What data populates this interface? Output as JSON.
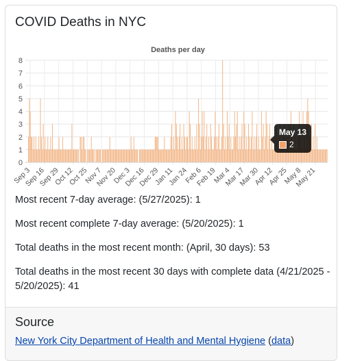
{
  "title": "COVID Deaths in NYC",
  "chart_data": {
    "type": "bar",
    "title": "Deaths per day",
    "ylim": [
      0,
      8
    ],
    "y_ticks": [
      "0",
      "1",
      "2",
      "3",
      "4",
      "5",
      "6",
      "7",
      "8"
    ],
    "x_tick_labels": [
      "Sep 3",
      "Sep 16",
      "Sep 29",
      "Oct 12",
      "Oct 25",
      "Nov 7",
      "Nov 20",
      "Dec 3",
      "Dec 16",
      "Dec 29",
      "Jan 11",
      "Jan 24",
      "Feb 6",
      "Feb 19",
      "Mar 4",
      "Mar 17",
      "Mar 30",
      "Apr 12",
      "Apr 25",
      "May 8",
      "May 21"
    ],
    "color": "#f0a46a",
    "values": [
      2,
      5,
      4,
      2,
      2,
      1,
      2,
      1,
      2,
      1,
      1,
      2,
      1,
      5,
      2,
      1,
      3,
      1,
      2,
      1,
      1,
      2,
      1,
      1,
      2,
      1,
      3,
      1,
      1,
      1,
      1,
      1,
      1,
      2,
      1,
      1,
      1,
      2,
      1,
      1,
      1,
      1,
      1,
      1,
      1,
      1,
      1,
      3,
      1,
      1,
      1,
      1,
      1,
      1,
      1,
      0,
      2,
      2,
      1,
      2,
      2,
      1,
      1,
      0,
      1,
      1,
      1,
      1,
      2,
      1,
      1,
      1,
      0,
      1,
      1,
      1,
      1,
      1,
      1,
      0,
      1,
      1,
      1,
      1,
      1,
      1,
      1,
      1,
      2,
      1,
      1,
      1,
      1,
      1,
      1,
      1,
      1,
      1,
      1,
      1,
      1,
      1,
      1,
      1,
      1,
      1,
      1,
      1,
      1,
      1,
      1,
      2,
      1,
      1,
      2,
      1,
      1,
      1,
      1,
      0,
      1,
      1,
      1,
      1,
      1,
      1,
      1,
      1,
      1,
      1,
      1,
      1,
      1,
      1,
      1,
      1,
      1,
      2,
      2,
      2,
      2,
      1,
      1,
      1,
      1,
      1,
      1,
      2,
      1,
      1,
      1,
      1,
      1,
      1,
      2,
      3,
      1,
      2,
      1,
      4,
      3,
      2,
      1,
      2,
      3,
      1,
      2,
      1,
      3,
      2,
      1,
      2,
      2,
      1,
      4,
      3,
      1,
      2,
      1,
      1,
      2,
      1,
      3,
      1,
      5,
      3,
      1,
      2,
      4,
      2,
      4,
      1,
      2,
      3,
      1,
      2,
      1,
      3,
      2,
      1,
      1,
      2,
      4,
      2,
      1,
      2,
      3,
      1,
      1,
      2,
      8,
      3,
      1,
      2,
      1,
      4,
      2,
      3,
      1,
      2,
      1,
      1,
      2,
      4,
      2,
      3,
      4,
      1,
      2,
      1,
      2,
      3,
      1,
      4,
      3,
      1,
      2,
      1,
      3,
      2,
      1,
      2,
      4,
      1,
      2,
      1,
      2,
      3,
      1,
      2,
      1,
      1,
      4,
      2,
      3,
      1,
      2,
      4,
      3,
      1,
      2,
      3,
      1,
      2,
      1,
      1,
      2,
      1,
      3,
      2,
      1,
      2,
      3,
      1,
      2,
      1,
      2,
      3,
      2,
      1,
      2,
      1,
      3,
      1,
      4,
      2,
      1,
      3,
      1,
      2,
      1,
      2,
      2,
      4,
      2,
      3,
      1,
      4,
      2,
      3,
      1,
      4,
      5,
      4,
      2,
      1,
      3,
      1,
      2,
      1,
      3,
      1,
      2,
      1,
      1,
      1,
      1,
      1,
      1,
      1,
      1,
      1,
      1,
      1
    ]
  },
  "tooltip": {
    "label": "May 13",
    "value": "2"
  },
  "stats": {
    "line1": "Most recent 7-day average: (5/27/2025): 1",
    "line2": "Most recent complete 7-day average: (5/20/2025): 1",
    "line3": "Total deaths in the most recent month: (April, 30 days): 53",
    "line4": "Total deaths in the most recent 30 days with complete data (4/21/2025 - 5/20/2025): 41"
  },
  "source": {
    "heading": "Source",
    "link_text": "New York City Department of Health and Mental Hygiene",
    "open_paren": "(",
    "data_link": "data",
    "close_paren": ")"
  }
}
